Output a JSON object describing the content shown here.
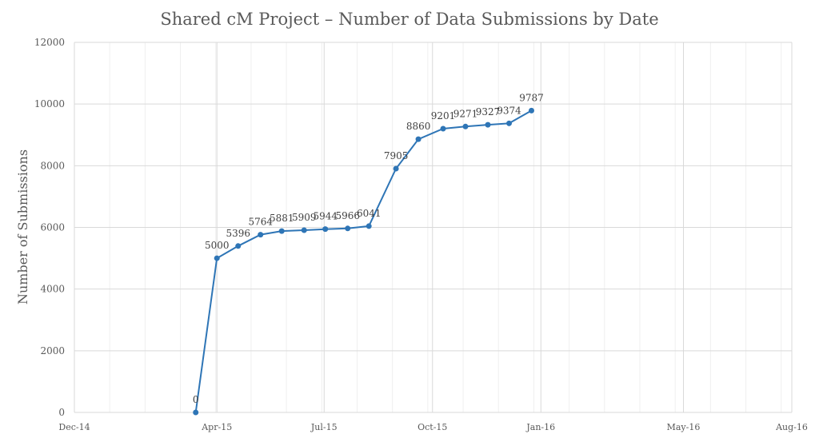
{
  "chart_data": {
    "type": "line",
    "title": "Shared cM Project – Number of Data Submissions by Date",
    "xlabel": "",
    "ylabel": "Number of Submissions",
    "ylim": [
      0,
      12000
    ],
    "yticks": [
      0,
      2000,
      4000,
      6000,
      8000,
      10000,
      12000
    ],
    "xlim": [
      "2014-12-01",
      "2016-08-01"
    ],
    "xticks": [
      {
        "date": "2014-12-01",
        "label": "Dec-14"
      },
      {
        "date": "2015-04-01",
        "label": "Apr-15"
      },
      {
        "date": "2015-07-01",
        "label": "Jul-15"
      },
      {
        "date": "2015-10-01",
        "label": "Oct-15"
      },
      {
        "date": "2016-01-01",
        "label": "Jan-16"
      },
      {
        "date": "2016-05-01",
        "label": "May-16"
      },
      {
        "date": "2016-08-01",
        "label": "Aug-16"
      }
    ],
    "grid": true,
    "color": "#2e75b6",
    "points": [
      {
        "x": "2015-03-14",
        "y": 0
      },
      {
        "x": "2015-04-01",
        "y": 5000
      },
      {
        "x": "2015-04-19",
        "y": 5396
      },
      {
        "x": "2015-05-08",
        "y": 5764
      },
      {
        "x": "2015-05-26",
        "y": 5881
      },
      {
        "x": "2015-06-14",
        "y": 5909
      },
      {
        "x": "2015-07-02",
        "y": 5944
      },
      {
        "x": "2015-07-21",
        "y": 5966
      },
      {
        "x": "2015-08-08",
        "y": 6041
      },
      {
        "x": "2015-08-31",
        "y": 7905
      },
      {
        "x": "2015-09-19",
        "y": 8860
      },
      {
        "x": "2015-10-10",
        "y": 9201
      },
      {
        "x": "2015-10-29",
        "y": 9271
      },
      {
        "x": "2015-11-17",
        "y": 9327
      },
      {
        "x": "2015-12-05",
        "y": 9374
      },
      {
        "x": "2015-12-24",
        "y": 9787
      }
    ]
  }
}
